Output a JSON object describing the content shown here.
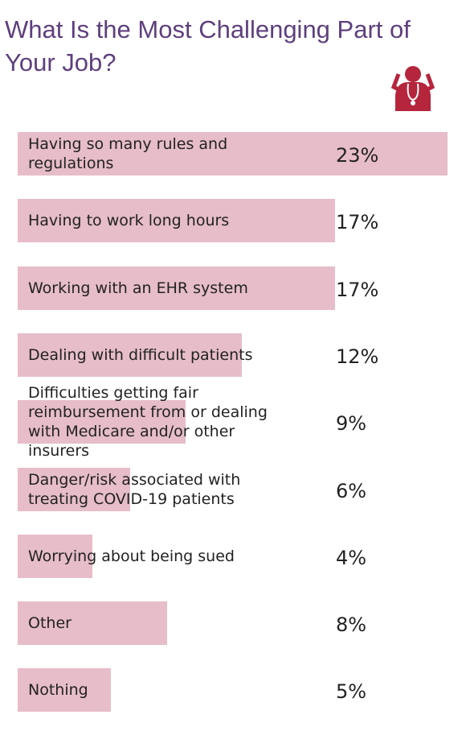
{
  "chart_data": {
    "type": "bar",
    "orientation": "horizontal",
    "title": "What Is the Most Challenging Part of Your Job?",
    "categories": [
      "Having so many rules and regulations",
      "Having to work long hours",
      "Working with an EHR system",
      "Dealing with difficult patients",
      "Difficulties getting fair reimbursement from or dealing with Medicare and/or other insurers",
      "Danger/risk associated with treating COVID-19 patients",
      "Worrying about being sued",
      "Other",
      "Nothing"
    ],
    "values": [
      23,
      17,
      17,
      12,
      9,
      6,
      4,
      8,
      5
    ],
    "value_labels": [
      "23%",
      "17%",
      "17%",
      "12%",
      "9%",
      "6%",
      "4%",
      "8%",
      "5%"
    ],
    "color": "#e6bdc8"
  }
}
